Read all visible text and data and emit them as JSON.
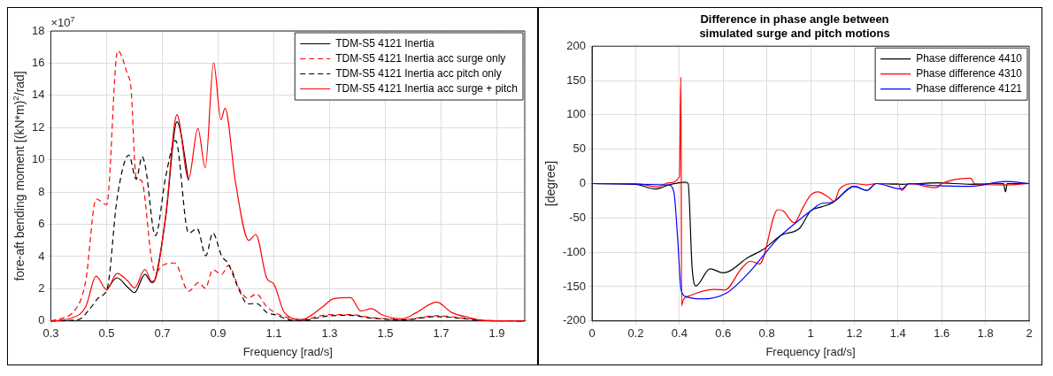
{
  "chart_data": [
    {
      "type": "line",
      "xlabel": "Frequency [rad/s]",
      "ylabel": "fore-aft bending moment [(kN*m)$^{2}$/rad]",
      "annotations": [
        "×10$^{7}$"
      ],
      "xlim": [
        0.3,
        2.0
      ],
      "xticks": [
        0.3,
        0.5,
        0.7,
        0.9,
        1.1,
        1.3,
        1.5,
        1.7,
        1.9
      ],
      "ylim": [
        0,
        18
      ],
      "yticks": [
        0,
        2,
        4,
        6,
        8,
        10,
        12,
        14,
        16,
        18
      ],
      "grid": true,
      "legend": "top right",
      "marker": "none",
      "series": [
        {
          "name": "TDM-S5 4121 Inertia",
          "color": "#000000",
          "line_style": "solid",
          "x": [
            0.5,
            0.5375,
            0.575,
            0.6,
            0.6375,
            0.6625,
            0.675,
            0.7125,
            0.7525,
            0.794
          ],
          "values": [
            1.9,
            2.68,
            2.1,
            1.76,
            2.89,
            2.38,
            2.64,
            6.5,
            12.37,
            8.72
          ]
        },
        {
          "name": "TDM-S5 4121 Inertia acc surge only",
          "color": "#ff0000",
          "line_style": "dashed",
          "x": [
            0.3,
            0.3875,
            0.425,
            0.4625,
            0.5,
            0.54,
            0.575,
            0.5875,
            0.606,
            0.625,
            0.6625,
            0.675,
            0.7,
            0.744,
            0.794,
            0.831,
            0.854,
            0.881,
            0.9125,
            0.9375,
            0.975,
            1.006,
            1.0375,
            1.075,
            1.1125,
            1.2,
            1.3,
            1.375,
            1.45,
            1.5625,
            1.6838,
            1.8,
            1.85,
            2.0
          ],
          "values": [
            0,
            0.7,
            2.47,
            7.58,
            7.22,
            16.78,
            15.3,
            14.45,
            8.9,
            8.72,
            3.7,
            3.0,
            3.44,
            3.6,
            1.85,
            2.38,
            2.03,
            3.17,
            2.9,
            3.44,
            2.03,
            1.41,
            1.67,
            0.88,
            0.44,
            0.09,
            0.39,
            0.39,
            0.21,
            0.09,
            0.32,
            0.14,
            0.04,
            0
          ]
        },
        {
          "name": "TDM-S5 4121 Inertia acc pitch only",
          "color": "#000000",
          "line_style": "dashed",
          "x": [
            0.3,
            0.4,
            0.4375,
            0.475,
            0.5025,
            0.5375,
            0.58,
            0.606,
            0.6275,
            0.64,
            0.675,
            0.7125,
            0.7475,
            0.794,
            0.825,
            0.856,
            0.881,
            0.9125,
            0.9375,
            0.975,
            1.006,
            1.0375,
            1.075,
            1.1125,
            1.15,
            1.2,
            1.3,
            1.375,
            1.45,
            1.5625,
            1.6838,
            1.8,
            1.85,
            2.0
          ],
          "values": [
            0,
            0.09,
            0.7,
            1.5,
            2.03,
            7.58,
            10.3,
            8.8,
            10.2,
            9.5,
            5.29,
            9.0,
            11.2,
            5.46,
            5.73,
            4.05,
            5.46,
            4.05,
            3.52,
            1.94,
            1.06,
            1.09,
            0.53,
            0.35,
            0.09,
            0.04,
            0.32,
            0.35,
            0.18,
            0.07,
            0.27,
            0.11,
            0.02,
            0
          ]
        },
        {
          "name": "TDM-S5 4121 Inertia acc surge + pitch",
          "color": "#ff0000",
          "line_style": "solid",
          "x": [
            0.3,
            0.375,
            0.425,
            0.4625,
            0.5,
            0.5375,
            0.575,
            0.6,
            0.6375,
            0.6625,
            0.675,
            0.7125,
            0.7525,
            0.794,
            0.8275,
            0.854,
            0.884,
            0.91,
            0.925,
            0.9625,
            1.01,
            1.035,
            1.075,
            1.1,
            1.1375,
            1.2,
            1.275,
            1.3125,
            1.375,
            1.4125,
            1.45,
            1.4875,
            1.5625,
            1.6125,
            1.6838,
            1.7375,
            1.8,
            1.85,
            2.0
          ],
          "values": [
            0,
            0.18,
            0.88,
            2.78,
            1.95,
            2.95,
            2.5,
            2.05,
            3.2,
            2.45,
            2.6,
            6.6,
            12.8,
            8.8,
            11.95,
            9.5,
            16.03,
            12.5,
            13.2,
            8.6,
            5.0,
            5.37,
            2.64,
            2.29,
            0.53,
            0.09,
            0.88,
            1.37,
            1.45,
            0.62,
            0.76,
            0.39,
            0.14,
            0.53,
            1.18,
            0.53,
            0.21,
            0.04,
            0
          ]
        }
      ]
    },
    {
      "type": "line",
      "title": "Difference in phase angle between\nsimulated surge and pitch motions",
      "xlabel": "Frequency [rad/s]",
      "ylabel": "[degree]",
      "xlim": [
        0,
        2
      ],
      "xticks": [
        0,
        0.2,
        0.4,
        0.6,
        0.8,
        1,
        1.2,
        1.4,
        1.6,
        1.8,
        2
      ],
      "ylim": [
        -200,
        200
      ],
      "yticks": [
        -200,
        -150,
        -100,
        -50,
        0,
        50,
        100,
        150,
        200
      ],
      "grid": true,
      "legend": "top right",
      "marker": "none",
      "series": [
        {
          "name": "Phase difference 4410",
          "color": "#000000",
          "line_style": "solid",
          "x": [
            0,
            0.2,
            0.29,
            0.35,
            0.425,
            0.44,
            0.458,
            0.475,
            0.54,
            0.6,
            0.717,
            0.783,
            0.867,
            0.95,
            1.0,
            1.05,
            1.1,
            1.2,
            1.258,
            1.3,
            1.417,
            1.583,
            1.733,
            1.883,
            1.892,
            1.9,
            2.0
          ],
          "values": [
            0,
            -1,
            -8,
            -2,
            2,
            0,
            -122,
            -149,
            -124,
            -130,
            -107,
            -96,
            -75,
            -65,
            -40,
            -34,
            -28,
            -4,
            -10,
            0,
            -1,
            1,
            -1,
            0,
            -12,
            0,
            0
          ]
        },
        {
          "name": "Phase difference 4310",
          "color": "#ff0000",
          "line_style": "solid",
          "x": [
            0,
            0.2,
            0.3,
            0.35,
            0.4,
            0.407,
            0.41,
            0.417,
            0.45,
            0.558,
            0.608,
            0.683,
            0.725,
            0.767,
            0.85,
            0.875,
            0.925,
            0.967,
            1.0,
            1.033,
            1.083,
            1.108,
            1.133,
            1.2,
            1.258,
            1.3,
            1.4,
            1.417,
            1.45,
            1.575,
            1.6,
            1.733,
            1.75,
            1.883,
            2.0
          ],
          "values": [
            0,
            0,
            -5,
            1,
            10,
            155,
            -178,
            -170,
            -163,
            -154,
            -155,
            -124,
            -113,
            -117,
            -38,
            -40,
            -57,
            -34,
            -17,
            -12,
            -20,
            -26,
            -8,
            0,
            -2,
            0,
            0,
            -10,
            0,
            -6,
            0,
            8,
            0,
            -2,
            0
          ]
        },
        {
          "name": "Phase difference 4121",
          "color": "#0000ff",
          "line_style": "solid",
          "x": [
            0,
            0.35,
            0.375,
            0.392,
            0.408,
            0.433,
            0.5,
            0.617,
            0.717,
            0.783,
            0.85,
            0.933,
            1.0,
            1.05,
            1.1,
            1.2,
            1.258,
            1.3,
            1.417,
            1.45,
            1.575,
            1.733,
            1.892,
            2.0
          ],
          "values": [
            0,
            -2,
            -13,
            -80,
            -155,
            -165,
            -168,
            -159,
            -130,
            -105,
            -80,
            -57,
            -40,
            -29,
            -27,
            -4,
            -10,
            0,
            -8,
            0,
            -3,
            -4,
            3,
            0
          ]
        }
      ]
    }
  ]
}
